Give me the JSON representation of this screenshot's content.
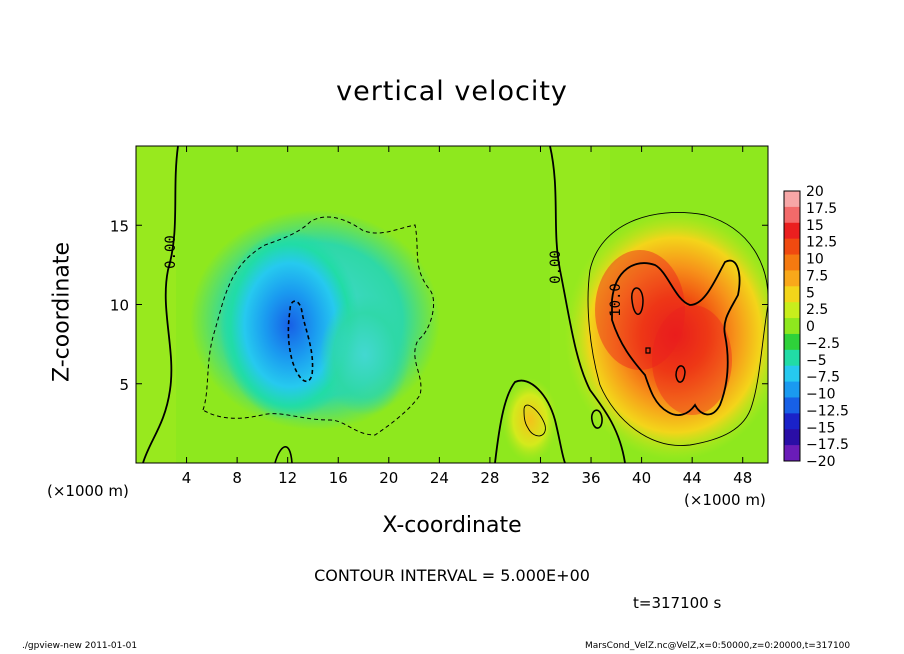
{
  "chart_data": {
    "type": "heatmap",
    "title": "vertical velocity",
    "xlabel": "X-coordinate",
    "ylabel": "Z-coordinate",
    "x_unit": "(×1000 m)",
    "xlim": [
      0,
      50
    ],
    "ylim": [
      0,
      20
    ],
    "x_ticks": [
      4,
      8,
      12,
      16,
      20,
      24,
      28,
      32,
      36,
      40,
      44,
      48
    ],
    "y_ticks": [
      5,
      10,
      15
    ],
    "contour_interval_text": "CONTOUR INTERVAL = 5.000E+00",
    "contour_labels": [
      "0.00",
      "0.00",
      "10.0"
    ],
    "time_text": "t=317100 s",
    "colorbar": {
      "levels": [
        "20",
        "17.5",
        "15",
        "12.5",
        "10",
        "7.5",
        "5",
        "2.5",
        "0",
        "−2.5",
        "−5",
        "−7.5",
        "−10",
        "−12.5",
        "−15",
        "−17.5",
        "−20"
      ],
      "colors": [
        "#f7a7a7",
        "#f36a6a",
        "#ea1f1f",
        "#f04a10",
        "#f57a10",
        "#f9a81a",
        "#f3d51a",
        "#c8ee1c",
        "#8ee81e",
        "#2ed23a",
        "#21dca6",
        "#26c9ef",
        "#1a9af0",
        "#1760e6",
        "#1a22c8",
        "#2a0ea6",
        "#6a1cb8"
      ]
    },
    "features": [
      {
        "kind": "updraft",
        "x": 41.5,
        "z": 8.5,
        "peak": 17
      },
      {
        "kind": "updraft",
        "x": 30.5,
        "z": 2.5,
        "peak": 7
      },
      {
        "kind": "downdraft",
        "x": 12.5,
        "z": 8,
        "peak": -12
      },
      {
        "kind": "downdraft",
        "x": 18,
        "z": 10,
        "peak": -6
      }
    ]
  },
  "footer": {
    "left": "./gpview-new  2011-01-01",
    "right": "MarsCond_VelZ.nc@VelZ,x=0:50000,z=0:20000,t=317100"
  }
}
